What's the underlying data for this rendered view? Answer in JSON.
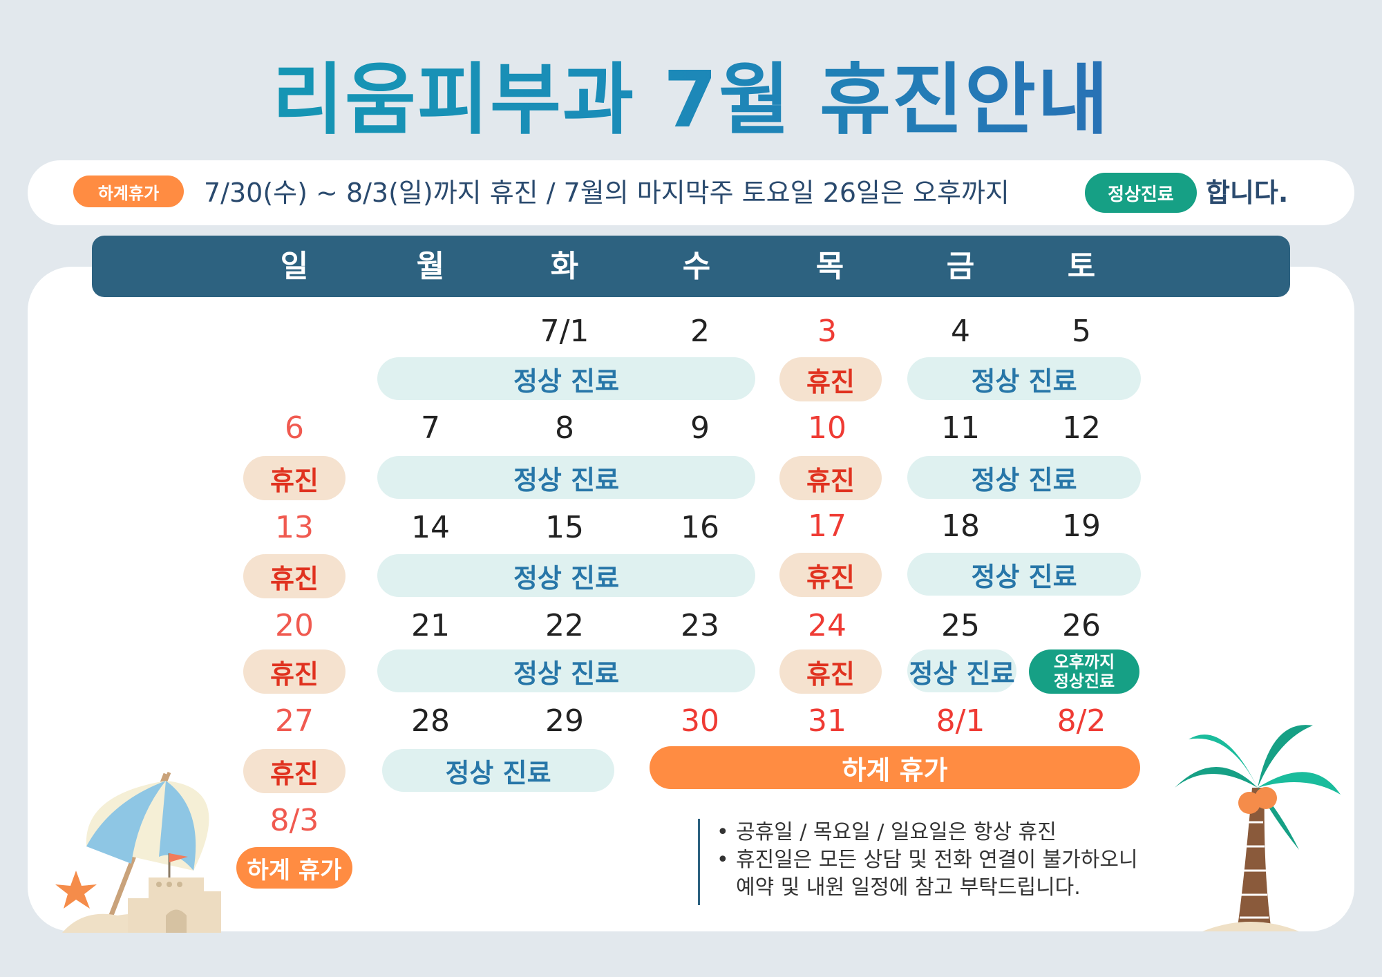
{
  "title": "리움피부과 7월 휴진안내",
  "notice": {
    "badge": "하계휴가",
    "text": "7/30(수) ~ 8/3(일)까지 휴진  /  7월의 마지막주 토요일 26일은 오후까지",
    "badge2": "정상진료",
    "end": "합니다."
  },
  "weekdays": [
    "일",
    "월",
    "화",
    "수",
    "목",
    "금",
    "토"
  ],
  "days": {
    "r1": [
      "7/1",
      "2",
      "3",
      "4",
      "5"
    ],
    "r2": [
      "6",
      "7",
      "8",
      "9",
      "10",
      "11",
      "12"
    ],
    "r3": [
      "13",
      "14",
      "15",
      "16",
      "17",
      "18",
      "19"
    ],
    "r4": [
      "20",
      "21",
      "22",
      "23",
      "24",
      "25",
      "26"
    ],
    "r5": [
      "27",
      "28",
      "29",
      "30",
      "31",
      "8/1",
      "8/2"
    ],
    "r6": [
      "8/3"
    ]
  },
  "labels": {
    "normal": "정상 진료",
    "closed": "휴진",
    "vacation": "하계 휴가",
    "half_line1": "오후까지",
    "half_line2": "정상진료"
  },
  "notes": [
    "공휴일 / 목요일 / 일요일은 항상 휴진",
    "휴진일은 모든 상담 및 전화 연결이 불가하오니",
    "예약 및 내원 일정에 참고 부탁드립니다."
  ],
  "colors": {
    "header_bar": "#2d6280",
    "normal_chip": "#dff1f0",
    "closed_chip": "#f5e2cf",
    "vacation": "#ff8c42",
    "half_day": "#16a085",
    "holiday_text": "#ef3b34"
  },
  "icons": [
    "beach-umbrella-icon",
    "sand-castle-icon",
    "starfish-icon",
    "palm-tree-icon"
  ]
}
